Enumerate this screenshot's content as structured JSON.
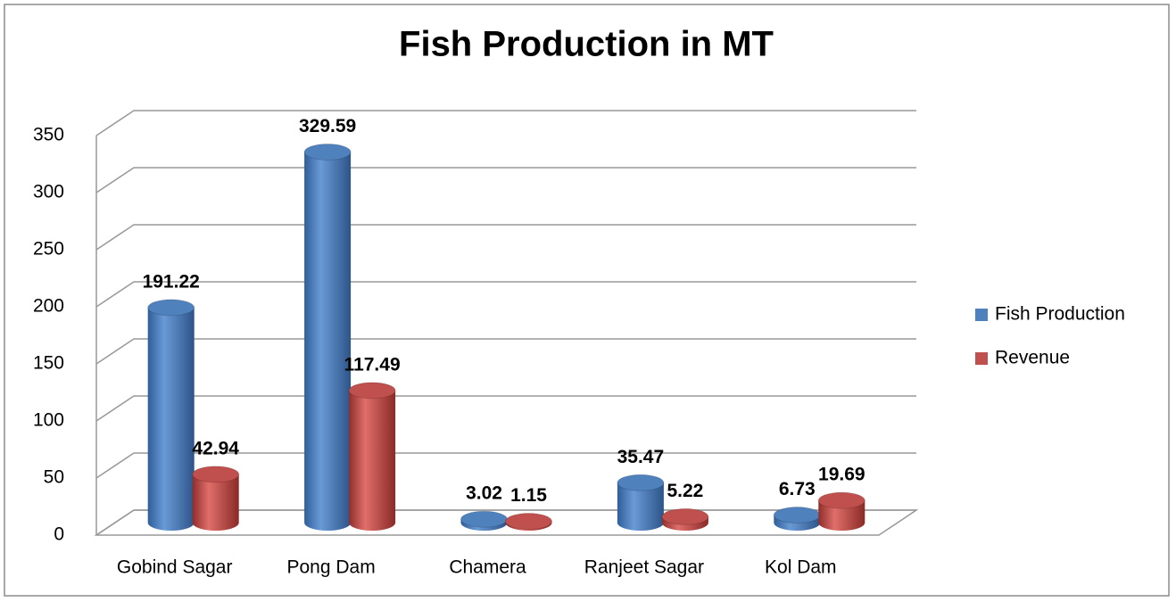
{
  "chart_data": {
    "type": "bar3d",
    "title": "Fish Production in MT",
    "categories": [
      "Gobind Sagar",
      "Pong Dam",
      "Chamera",
      "Ranjeet Sagar",
      "Kol Dam"
    ],
    "series": [
      {
        "name": "Fish Production",
        "color": "#4f81bd",
        "values": [
          191.22,
          329.59,
          3.02,
          35.47,
          6.73
        ]
      },
      {
        "name": "Revenue",
        "color": "#c0504d",
        "values": [
          42.94,
          117.49,
          1.15,
          5.22,
          19.69
        ]
      }
    ],
    "ylim": [
      0,
      350
    ],
    "yticks": [
      0,
      50,
      100,
      150,
      200,
      250,
      300,
      350
    ],
    "grid": true,
    "legend": "right"
  }
}
